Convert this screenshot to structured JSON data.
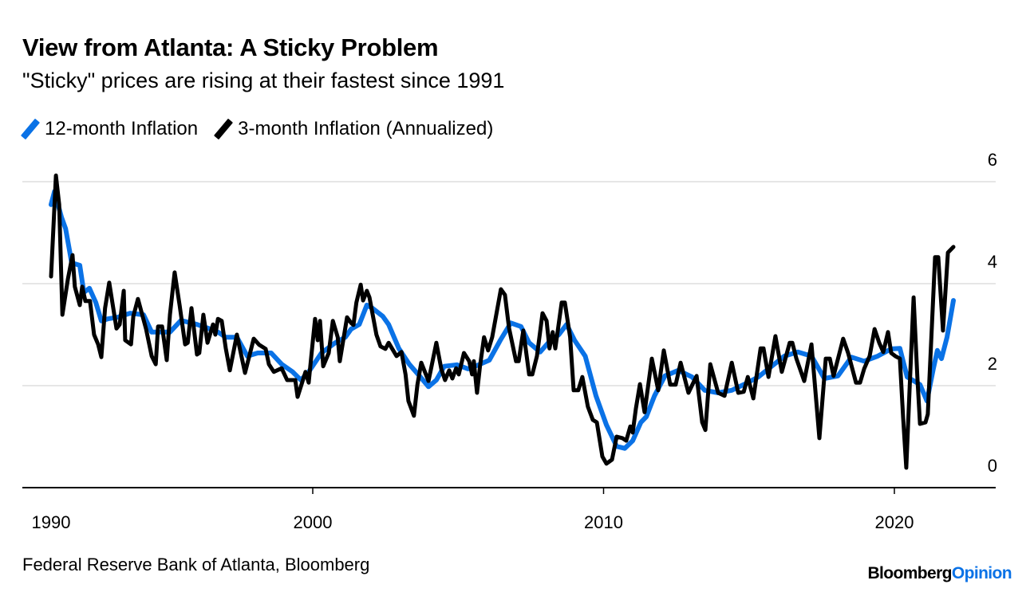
{
  "header": {
    "title": "View from Atlanta: A Sticky Problem",
    "subtitle": "\"Sticky\" prices are rising at their fastest since 1991"
  },
  "footer": {
    "source": "Federal Reserve Bank of Atlanta, Bloomberg",
    "logo_part1": "Bloomberg",
    "logo_part2": "Opinion"
  },
  "colors": {
    "blue": "#0a72e6",
    "black": "#000000",
    "grid": "#e6e6e6",
    "logo_accent": "#0a72e6"
  },
  "chart_data": {
    "type": "line",
    "title": "View from Atlanta: A Sticky Problem",
    "subtitle": "\"Sticky\" prices are rising at their fastest since 1991",
    "xlabel": "",
    "ylabel": "",
    "xlim": [
      1990,
      2023.3
    ],
    "ylim": [
      0,
      6
    ],
    "x_ticks": [
      1990,
      2000,
      2010,
      2020
    ],
    "x_tick_labels": [
      "1990",
      "2000",
      "2010",
      "2020"
    ],
    "y_ticks": [
      0,
      2,
      4,
      6
    ],
    "y_tick_labels": [
      "0",
      "2",
      "4",
      "6"
    ],
    "y_axis_side": "right",
    "grid": true,
    "legend_position": "top-left",
    "series": [
      {
        "name": "12-month Inflation",
        "color": "#0a72e6",
        "points": [
          [
            1991.0,
            5.55
          ],
          [
            1991.12,
            5.81
          ],
          [
            1991.36,
            5.3
          ],
          [
            1991.5,
            5.08
          ],
          [
            1991.63,
            4.67
          ],
          [
            1991.71,
            4.41
          ],
          [
            1991.99,
            4.36
          ],
          [
            1992.13,
            3.83
          ],
          [
            1992.32,
            3.91
          ],
          [
            1992.54,
            3.63
          ],
          [
            1992.73,
            3.27
          ],
          [
            1992.95,
            3.31
          ],
          [
            1993.28,
            3.34
          ],
          [
            1993.72,
            3.42
          ],
          [
            1994.18,
            3.39
          ],
          [
            1994.46,
            3.05
          ],
          [
            1994.82,
            3.05
          ],
          [
            1995.09,
            3.05
          ],
          [
            1995.47,
            3.28
          ],
          [
            1996.02,
            3.2
          ],
          [
            1996.38,
            3.13
          ],
          [
            1996.74,
            3.05
          ],
          [
            1997.01,
            2.95
          ],
          [
            1997.39,
            2.95
          ],
          [
            1997.75,
            2.58
          ],
          [
            1998.11,
            2.64
          ],
          [
            1998.57,
            2.64
          ],
          [
            1998.93,
            2.42
          ],
          [
            1999.31,
            2.27
          ],
          [
            1999.59,
            2.11
          ],
          [
            1999.86,
            2.27
          ],
          [
            2000.3,
            2.64
          ],
          [
            2000.77,
            2.84
          ],
          [
            2001.12,
            2.95
          ],
          [
            2001.32,
            3.11
          ],
          [
            2001.6,
            3.2
          ],
          [
            2001.86,
            3.58
          ],
          [
            2002.05,
            3.52
          ],
          [
            2002.41,
            3.36
          ],
          [
            2002.61,
            3.2
          ],
          [
            2002.96,
            2.73
          ],
          [
            2003.32,
            2.42
          ],
          [
            2003.7,
            2.17
          ],
          [
            2003.98,
            1.98
          ],
          [
            2004.25,
            2.11
          ],
          [
            2004.52,
            2.38
          ],
          [
            2004.96,
            2.41
          ],
          [
            2005.34,
            2.33
          ],
          [
            2005.71,
            2.41
          ],
          [
            2006.07,
            2.5
          ],
          [
            2006.45,
            2.89
          ],
          [
            2006.81,
            3.23
          ],
          [
            2007.16,
            3.16
          ],
          [
            2007.44,
            2.84
          ],
          [
            2007.82,
            2.66
          ],
          [
            2008.1,
            2.84
          ],
          [
            2008.46,
            3.0
          ],
          [
            2008.73,
            3.2
          ],
          [
            2009.0,
            2.89
          ],
          [
            2009.37,
            2.58
          ],
          [
            2009.74,
            1.8
          ],
          [
            2010.1,
            1.23
          ],
          [
            2010.45,
            0.81
          ],
          [
            2010.73,
            0.77
          ],
          [
            2011.0,
            0.92
          ],
          [
            2011.28,
            1.28
          ],
          [
            2011.47,
            1.39
          ],
          [
            2011.75,
            1.8
          ],
          [
            2012.11,
            2.19
          ],
          [
            2012.57,
            2.3
          ],
          [
            2013.04,
            2.17
          ],
          [
            2013.48,
            1.91
          ],
          [
            2013.94,
            1.86
          ],
          [
            2014.41,
            1.91
          ],
          [
            2014.85,
            2.03
          ],
          [
            2015.32,
            2.17
          ],
          [
            2015.78,
            2.38
          ],
          [
            2016.22,
            2.58
          ],
          [
            2016.68,
            2.66
          ],
          [
            2017.15,
            2.58
          ],
          [
            2017.59,
            2.14
          ],
          [
            2018.06,
            2.19
          ],
          [
            2018.52,
            2.56
          ],
          [
            2018.96,
            2.48
          ],
          [
            2019.43,
            2.58
          ],
          [
            2019.89,
            2.72
          ],
          [
            2020.19,
            2.73
          ],
          [
            2020.44,
            2.17
          ],
          [
            2020.88,
            2.02
          ],
          [
            2021.12,
            1.7
          ],
          [
            2021.34,
            2.33
          ],
          [
            2021.48,
            2.69
          ],
          [
            2021.62,
            2.53
          ],
          [
            2021.81,
            2.95
          ],
          [
            2022.03,
            3.67
          ]
        ]
      },
      {
        "name": "3-month Inflation (Annualized)",
        "color": "#000000",
        "points": [
          [
            1991.0,
            4.14
          ],
          [
            1991.17,
            6.12
          ],
          [
            1991.28,
            5.55
          ],
          [
            1991.39,
            3.39
          ],
          [
            1991.58,
            4.09
          ],
          [
            1991.74,
            4.56
          ],
          [
            1991.82,
            3.94
          ],
          [
            1991.99,
            3.58
          ],
          [
            1992.07,
            3.94
          ],
          [
            1992.18,
            3.66
          ],
          [
            1992.34,
            3.66
          ],
          [
            1992.48,
            3.0
          ],
          [
            1992.62,
            2.81
          ],
          [
            1992.73,
            2.56
          ],
          [
            1992.86,
            3.52
          ],
          [
            1993.0,
            4.02
          ],
          [
            1993.25,
            3.12
          ],
          [
            1993.36,
            3.2
          ],
          [
            1993.5,
            3.86
          ],
          [
            1993.55,
            2.89
          ],
          [
            1993.75,
            2.81
          ],
          [
            1993.83,
            3.36
          ],
          [
            1993.99,
            3.7
          ],
          [
            1994.27,
            3.11
          ],
          [
            1994.46,
            2.58
          ],
          [
            1994.6,
            2.42
          ],
          [
            1994.68,
            3.16
          ],
          [
            1994.82,
            3.16
          ],
          [
            1994.98,
            2.5
          ],
          [
            1995.09,
            3.39
          ],
          [
            1995.25,
            4.22
          ],
          [
            1995.42,
            3.58
          ],
          [
            1995.61,
            2.81
          ],
          [
            1995.7,
            2.84
          ],
          [
            1995.83,
            3.52
          ],
          [
            1996.02,
            2.61
          ],
          [
            1996.1,
            2.64
          ],
          [
            1996.24,
            3.39
          ],
          [
            1996.38,
            2.84
          ],
          [
            1996.57,
            3.2
          ],
          [
            1996.65,
            3.0
          ],
          [
            1996.74,
            3.31
          ],
          [
            1996.87,
            3.27
          ],
          [
            1997.01,
            2.73
          ],
          [
            1997.15,
            2.3
          ],
          [
            1997.39,
            3.0
          ],
          [
            1997.67,
            2.25
          ],
          [
            1997.97,
            2.92
          ],
          [
            1998.16,
            2.8
          ],
          [
            1998.38,
            2.72
          ],
          [
            1998.49,
            2.42
          ],
          [
            1998.66,
            2.27
          ],
          [
            1998.93,
            2.34
          ],
          [
            1999.12,
            2.11
          ],
          [
            1999.4,
            2.11
          ],
          [
            1999.48,
            1.78
          ],
          [
            1999.75,
            2.27
          ],
          [
            1999.86,
            2.06
          ],
          [
            1999.95,
            2.58
          ],
          [
            2000.08,
            3.31
          ],
          [
            2000.17,
            2.89
          ],
          [
            2000.25,
            3.27
          ],
          [
            2000.36,
            2.38
          ],
          [
            2000.55,
            2.64
          ],
          [
            2000.69,
            3.27
          ],
          [
            2000.86,
            2.95
          ],
          [
            2000.93,
            2.48
          ],
          [
            2001.18,
            3.34
          ],
          [
            2001.32,
            3.23
          ],
          [
            2001.4,
            3.19
          ],
          [
            2001.5,
            3.63
          ],
          [
            2001.65,
            3.98
          ],
          [
            2001.73,
            3.67
          ],
          [
            2001.86,
            3.86
          ],
          [
            2001.95,
            3.73
          ],
          [
            2002.19,
            3.0
          ],
          [
            2002.33,
            2.77
          ],
          [
            2002.5,
            2.72
          ],
          [
            2002.61,
            2.84
          ],
          [
            2002.88,
            2.58
          ],
          [
            2003.05,
            2.66
          ],
          [
            2003.19,
            2.22
          ],
          [
            2003.29,
            1.7
          ],
          [
            2003.48,
            1.41
          ],
          [
            2003.6,
            2.02
          ],
          [
            2003.73,
            2.45
          ],
          [
            2003.98,
            2.09
          ],
          [
            2004.25,
            2.84
          ],
          [
            2004.42,
            2.33
          ],
          [
            2004.55,
            2.11
          ],
          [
            2004.69,
            2.3
          ],
          [
            2004.8,
            2.14
          ],
          [
            2004.93,
            2.34
          ],
          [
            2005.02,
            2.22
          ],
          [
            2005.2,
            2.64
          ],
          [
            2005.38,
            2.48
          ],
          [
            2005.48,
            2.22
          ],
          [
            2005.54,
            2.48
          ],
          [
            2005.65,
            1.86
          ],
          [
            2005.75,
            2.38
          ],
          [
            2005.89,
            2.95
          ],
          [
            2006.03,
            2.69
          ],
          [
            2006.17,
            2.95
          ],
          [
            2006.47,
            3.89
          ],
          [
            2006.61,
            3.78
          ],
          [
            2006.75,
            3.13
          ],
          [
            2006.99,
            2.48
          ],
          [
            2007.08,
            2.48
          ],
          [
            2007.24,
            3.08
          ],
          [
            2007.44,
            2.22
          ],
          [
            2007.55,
            2.22
          ],
          [
            2007.71,
            2.58
          ],
          [
            2007.9,
            3.42
          ],
          [
            2008.04,
            3.27
          ],
          [
            2008.14,
            2.73
          ],
          [
            2008.25,
            3.05
          ],
          [
            2008.34,
            2.73
          ],
          [
            2008.56,
            3.63
          ],
          [
            2008.67,
            3.63
          ],
          [
            2008.85,
            2.95
          ],
          [
            2008.97,
            1.91
          ],
          [
            2009.13,
            1.91
          ],
          [
            2009.27,
            2.17
          ],
          [
            2009.46,
            1.59
          ],
          [
            2009.63,
            1.33
          ],
          [
            2009.77,
            1.28
          ],
          [
            2009.96,
            0.61
          ],
          [
            2010.1,
            0.47
          ],
          [
            2010.29,
            0.55
          ],
          [
            2010.45,
            1.0
          ],
          [
            2010.65,
            0.97
          ],
          [
            2010.78,
            0.92
          ],
          [
            2010.92,
            1.2
          ],
          [
            2011.0,
            1.08
          ],
          [
            2011.11,
            1.55
          ],
          [
            2011.25,
            2.03
          ],
          [
            2011.41,
            1.48
          ],
          [
            2011.66,
            2.53
          ],
          [
            2011.88,
            1.91
          ],
          [
            2012.07,
            2.69
          ],
          [
            2012.29,
            2.02
          ],
          [
            2012.48,
            2.02
          ],
          [
            2012.65,
            2.45
          ],
          [
            2012.92,
            1.86
          ],
          [
            2013.2,
            2.19
          ],
          [
            2013.39,
            1.28
          ],
          [
            2013.5,
            1.13
          ],
          [
            2013.67,
            2.42
          ],
          [
            2013.94,
            1.86
          ],
          [
            2014.16,
            1.8
          ],
          [
            2014.41,
            2.45
          ],
          [
            2014.63,
            1.86
          ],
          [
            2014.82,
            1.88
          ],
          [
            2014.96,
            2.17
          ],
          [
            2015.15,
            1.75
          ],
          [
            2015.4,
            2.73
          ],
          [
            2015.5,
            2.73
          ],
          [
            2015.67,
            2.17
          ],
          [
            2015.91,
            2.97
          ],
          [
            2016.13,
            2.27
          ],
          [
            2016.4,
            2.84
          ],
          [
            2016.49,
            2.84
          ],
          [
            2016.63,
            2.53
          ],
          [
            2016.9,
            2.09
          ],
          [
            2017.15,
            2.81
          ],
          [
            2017.42,
            0.97
          ],
          [
            2017.64,
            2.53
          ],
          [
            2017.78,
            2.53
          ],
          [
            2017.91,
            2.19
          ],
          [
            2018.24,
            2.92
          ],
          [
            2018.41,
            2.64
          ],
          [
            2018.68,
            2.06
          ],
          [
            2018.82,
            2.06
          ],
          [
            2018.96,
            2.33
          ],
          [
            2019.15,
            2.58
          ],
          [
            2019.32,
            3.11
          ],
          [
            2019.48,
            2.84
          ],
          [
            2019.62,
            2.66
          ],
          [
            2019.78,
            3.05
          ],
          [
            2019.89,
            2.64
          ],
          [
            2020.03,
            2.58
          ],
          [
            2020.19,
            2.53
          ],
          [
            2020.3,
            1.39
          ],
          [
            2020.41,
            0.39
          ],
          [
            2020.52,
            1.91
          ],
          [
            2020.66,
            3.73
          ],
          [
            2020.79,
            2.17
          ],
          [
            2020.88,
            1.25
          ],
          [
            2021.07,
            1.28
          ],
          [
            2021.15,
            1.44
          ],
          [
            2021.4,
            4.52
          ],
          [
            2021.51,
            4.52
          ],
          [
            2021.67,
            3.08
          ],
          [
            2021.84,
            4.61
          ],
          [
            2022.03,
            4.72
          ]
        ]
      }
    ]
  }
}
